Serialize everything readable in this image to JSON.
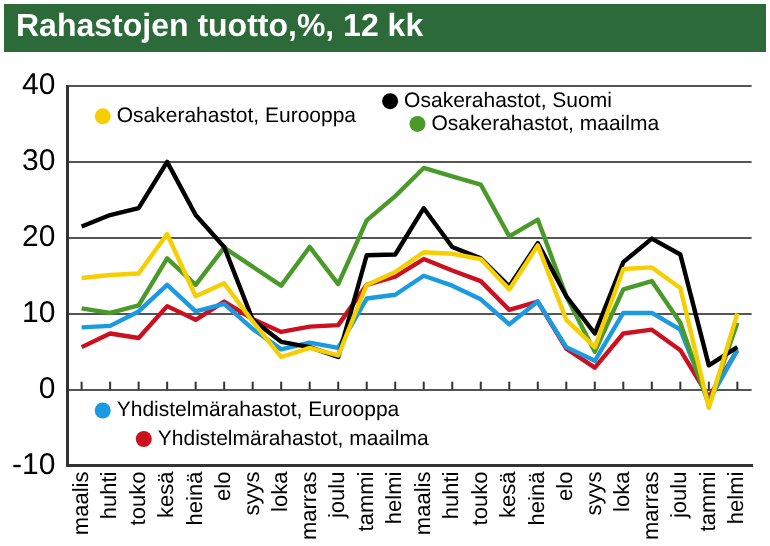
{
  "chart_data": {
    "type": "line",
    "title": "Rahastojen tuotto,%, 12 kk",
    "categories": [
      "maalis",
      "huhti",
      "touko",
      "kesä",
      "heinä",
      "elo",
      "syys",
      "loka",
      "marras",
      "joulu",
      "tammi",
      "helmi",
      "maalis",
      "huhti",
      "touko",
      "kesä",
      "heinä",
      "elo",
      "syys",
      "loka",
      "marras",
      "joulu",
      "tammi",
      "helmi"
    ],
    "series": [
      {
        "name": "Osakerahastot, Eurooppa",
        "color": "#f5cf00",
        "values": [
          14.7,
          15.1,
          15.3,
          20.5,
          12.3,
          14.0,
          9.0,
          4.3,
          5.5,
          4.5,
          13.8,
          15.5,
          18.1,
          17.9,
          17.2,
          13.2,
          19.0,
          9.2,
          5.6,
          15.9,
          16.1,
          13.4,
          -2.4,
          10.0
        ]
      },
      {
        "name": "Osakerahastot, Suomi",
        "color": "#000000",
        "values": [
          21.5,
          23.0,
          23.9,
          30.0,
          23.0,
          18.8,
          9.2,
          6.3,
          5.6,
          4.3,
          17.7,
          17.8,
          23.9,
          18.8,
          17.3,
          13.6,
          19.3,
          12.3,
          7.4,
          16.8,
          19.9,
          17.8,
          3.2,
          5.6
        ]
      },
      {
        "name": "Osakerahastot, maailma",
        "color": "#4a9a2a",
        "values": [
          10.7,
          10.1,
          11.1,
          17.3,
          13.8,
          18.7,
          16.2,
          13.7,
          18.8,
          13.9,
          22.3,
          25.5,
          29.2,
          28.1,
          27.0,
          20.2,
          22.4,
          12.3,
          5.0,
          13.2,
          14.3,
          8.8,
          -2.0,
          8.8
        ]
      },
      {
        "name": "Yhdistelmärahastot, Eurooppa",
        "color": "#1a9ae0",
        "values": [
          8.2,
          8.4,
          10.3,
          13.8,
          10.3,
          11.3,
          8.0,
          5.3,
          6.2,
          5.5,
          12.0,
          12.5,
          15.0,
          13.7,
          11.9,
          8.6,
          11.6,
          5.6,
          3.8,
          10.1,
          10.1,
          7.9,
          -1.5,
          5.2
        ]
      },
      {
        "name": "Yhdistelmärahastot, maailma",
        "color": "#cc1020",
        "values": [
          5.6,
          7.4,
          6.8,
          11.0,
          9.2,
          11.6,
          9.3,
          7.6,
          8.3,
          8.5,
          13.8,
          14.9,
          17.2,
          15.7,
          14.3,
          10.5,
          11.6,
          5.4,
          2.9,
          7.4,
          7.9,
          5.2,
          -1.0,
          5.2
        ]
      }
    ],
    "ylim": [
      -10,
      40
    ],
    "yticks": [
      -10,
      0,
      10,
      20,
      30,
      40
    ],
    "grid": "y",
    "legend": "top",
    "marker": "none",
    "line_style": "solid"
  }
}
